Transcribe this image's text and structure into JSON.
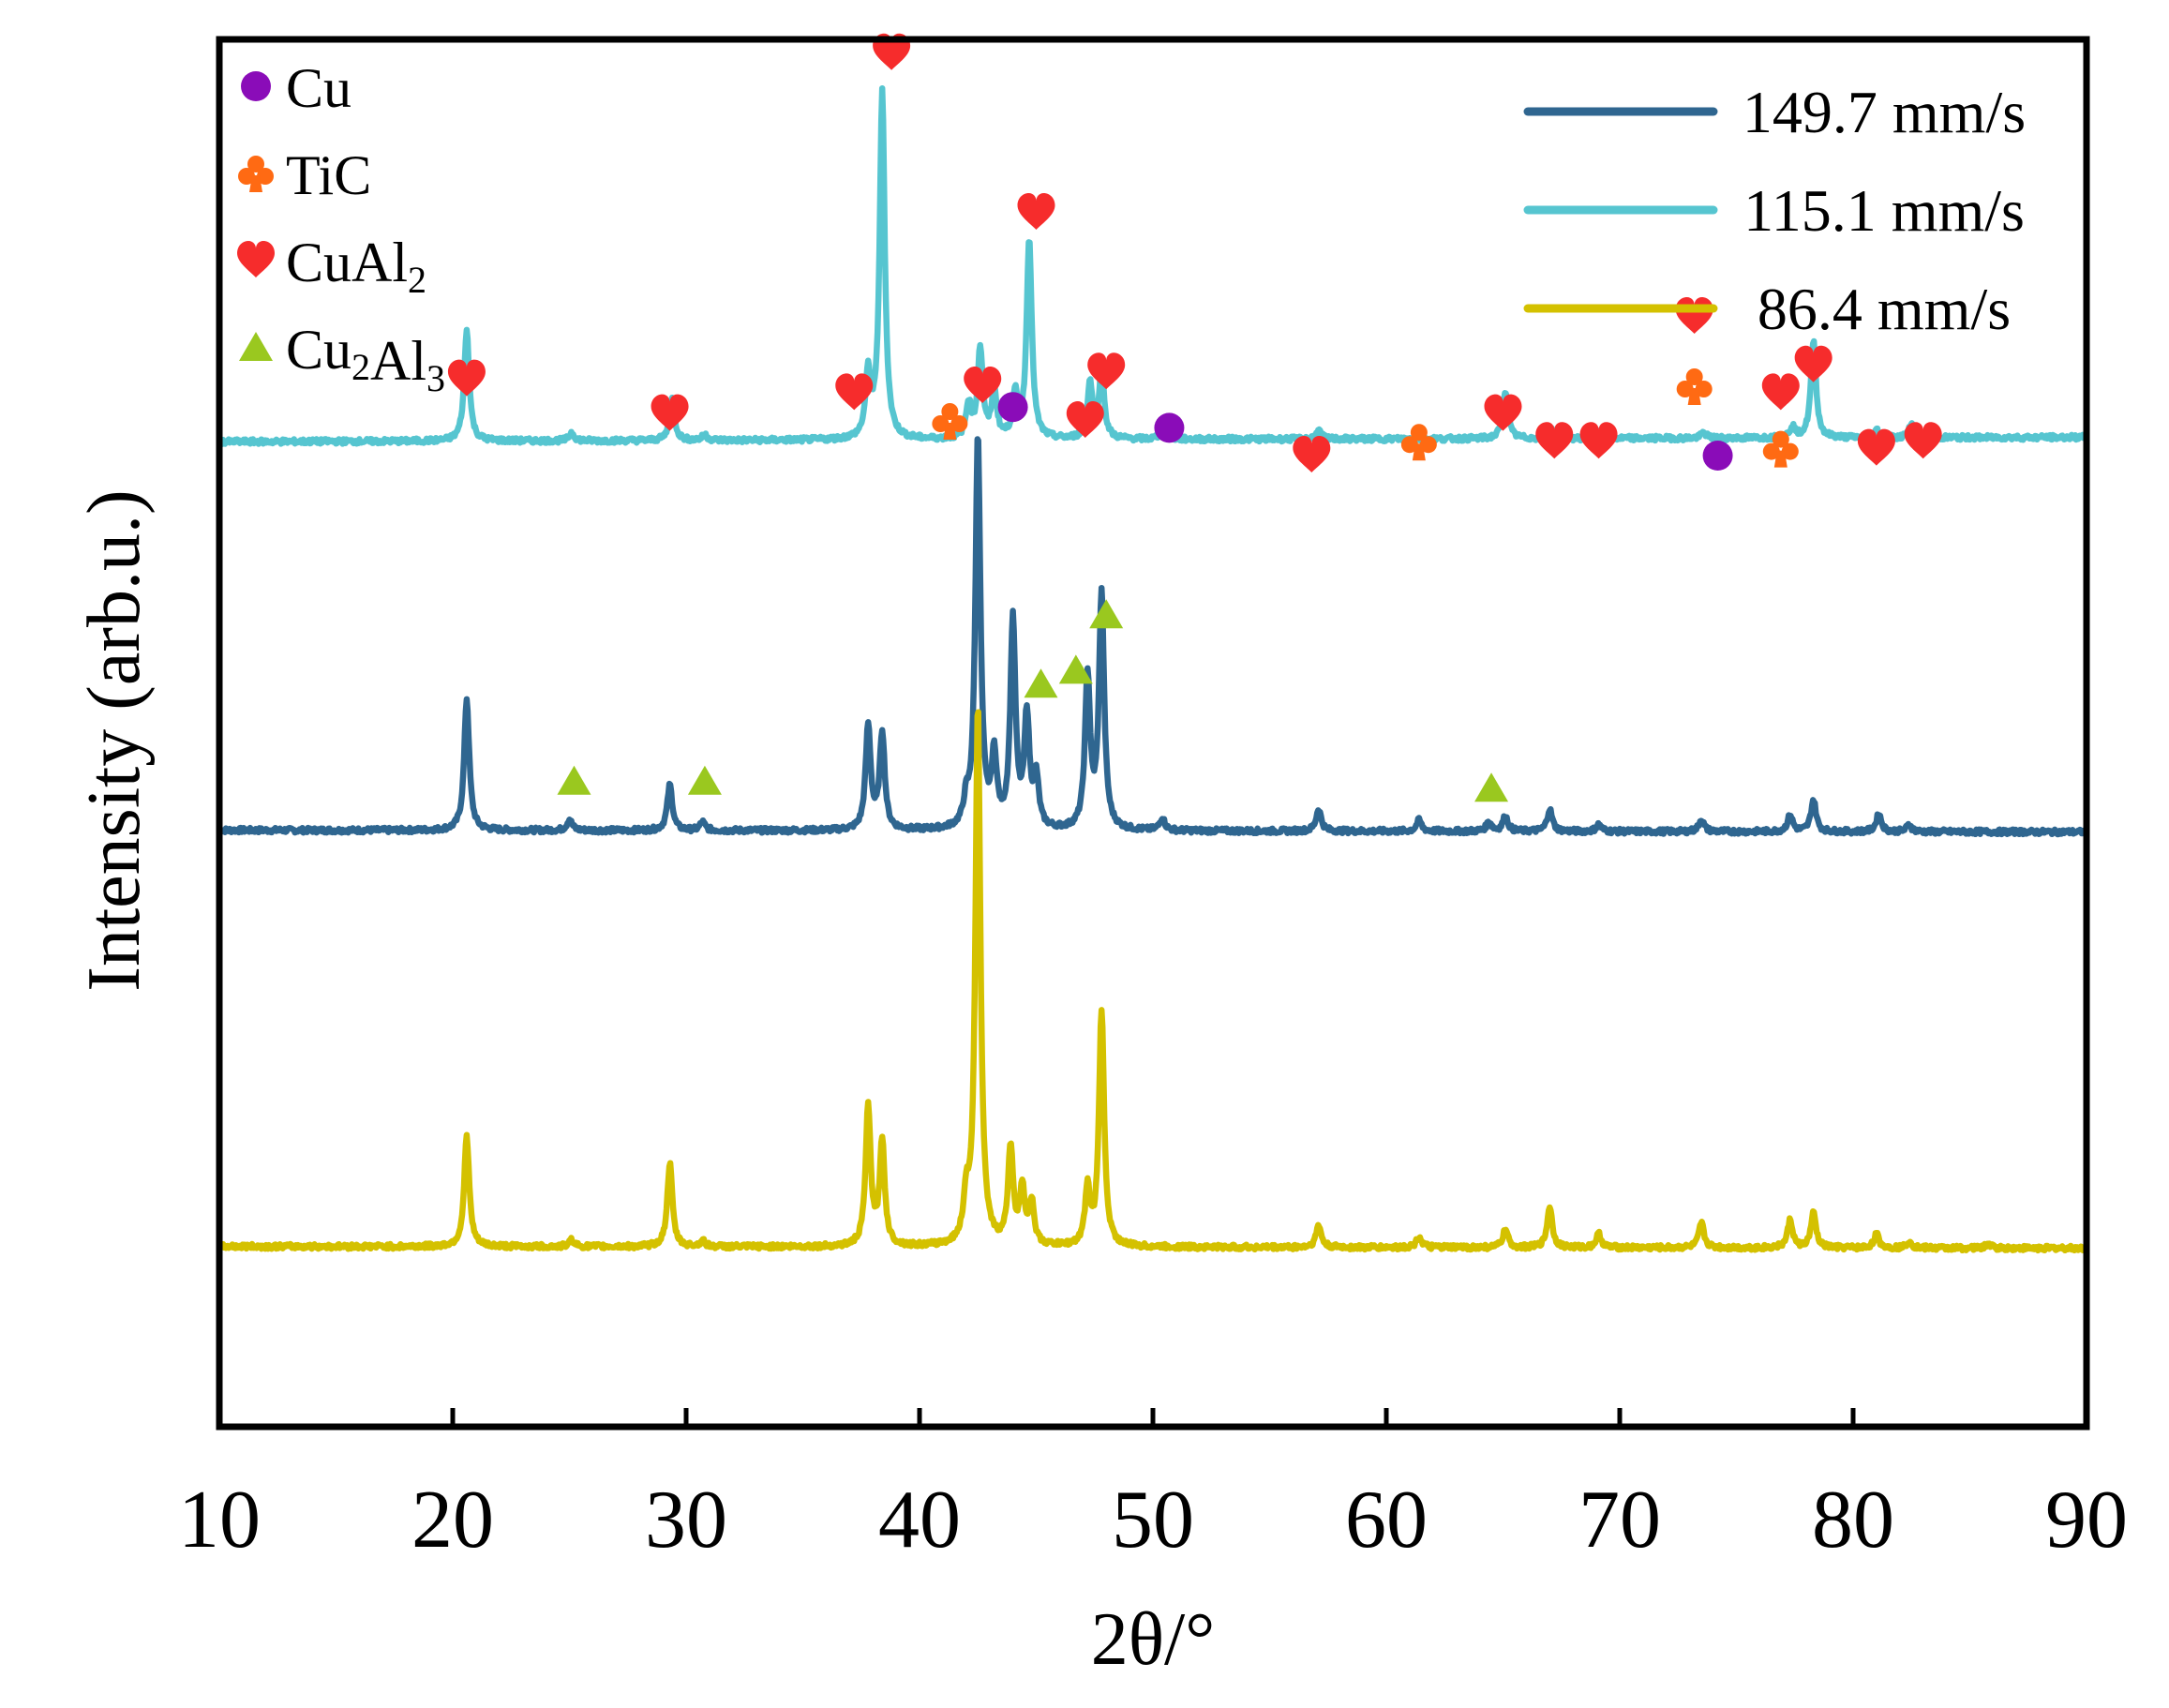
{
  "chart_data": {
    "type": "line",
    "title": "",
    "xlabel": "2θ/°",
    "ylabel": "Intensity (arb.u.)",
    "xlim": [
      10,
      90
    ],
    "xticks": [
      10,
      20,
      30,
      40,
      50,
      60,
      70,
      80,
      90
    ],
    "ylim": [
      0,
      100
    ],
    "grid": false,
    "legend_position": "top-right",
    "series": [
      {
        "name": "149.7 mm/s",
        "color": "#2f6690",
        "baseline": 43,
        "peaks": [
          [
            20.6,
            9.5
          ],
          [
            25.0,
            0.8
          ],
          [
            29.3,
            3.3
          ],
          [
            30.7,
            0.6
          ],
          [
            37.8,
            7.5
          ],
          [
            38.4,
            7.0
          ],
          [
            42.0,
            1.6
          ],
          [
            42.5,
            28.5
          ],
          [
            43.2,
            5.0
          ],
          [
            44.0,
            15.0
          ],
          [
            44.6,
            8.0
          ],
          [
            45.0,
            3.5
          ],
          [
            47.2,
            11.0
          ],
          [
            47.8,
            17.0
          ],
          [
            50.4,
            0.9
          ],
          [
            57.1,
            1.6
          ],
          [
            61.4,
            0.8
          ],
          [
            64.4,
            0.7
          ],
          [
            65.1,
            1.1
          ],
          [
            67.0,
            1.6
          ],
          [
            69.1,
            0.5
          ],
          [
            73.5,
            0.9
          ],
          [
            77.3,
            1.2
          ],
          [
            78.3,
            2.3
          ],
          [
            81.1,
            1.3
          ],
          [
            82.4,
            0.5
          ]
        ]
      },
      {
        "name": "115.1 mm/s",
        "color": "#56c5d0",
        "baseline": 71,
        "peaks": [
          [
            20.6,
            8.0
          ],
          [
            25.1,
            0.6
          ],
          [
            29.4,
            3.0
          ],
          [
            30.8,
            0.4
          ],
          [
            37.8,
            4.5
          ],
          [
            38.4,
            25.0
          ],
          [
            42.1,
            2.5
          ],
          [
            42.6,
            6.5
          ],
          [
            43.2,
            3.5
          ],
          [
            44.1,
            3.0
          ],
          [
            44.7,
            14.5
          ],
          [
            47.3,
            4.0
          ],
          [
            47.8,
            5.0
          ],
          [
            50.4,
            0.8
          ],
          [
            57.1,
            0.6
          ],
          [
            65.1,
            3.5
          ],
          [
            67.1,
            0.6
          ],
          [
            69.1,
            0.4
          ],
          [
            73.6,
            0.4
          ],
          [
            77.4,
            0.8
          ],
          [
            78.3,
            7.0
          ],
          [
            81.0,
            0.6
          ],
          [
            82.5,
            1.0
          ]
        ]
      },
      {
        "name": "86.4 mm/s",
        "color": "#d4c100",
        "baseline": 13,
        "peaks": [
          [
            20.6,
            8.0
          ],
          [
            25.1,
            0.5
          ],
          [
            29.3,
            6.0
          ],
          [
            30.7,
            0.4
          ],
          [
            37.8,
            10.0
          ],
          [
            38.4,
            7.5
          ],
          [
            42.0,
            3.0
          ],
          [
            42.5,
            39.0
          ],
          [
            43.9,
            7.0
          ],
          [
            44.4,
            4.0
          ],
          [
            44.8,
            3.0
          ],
          [
            47.2,
            4.0
          ],
          [
            47.8,
            17.0
          ],
          [
            57.1,
            1.6
          ],
          [
            61.4,
            0.8
          ],
          [
            65.1,
            1.3
          ],
          [
            67.0,
            3.0
          ],
          [
            69.1,
            1.0
          ],
          [
            73.5,
            1.8
          ],
          [
            77.3,
            2.0
          ],
          [
            78.3,
            2.5
          ],
          [
            81.0,
            1.0
          ],
          [
            82.4,
            0.5
          ],
          [
            85.8,
            0.3
          ]
        ]
      }
    ],
    "phase_legend": [
      {
        "phase": "Cu",
        "label": "Cu",
        "sub": "",
        "sym": "circle",
        "color": "#8a0cb8"
      },
      {
        "phase": "TiC",
        "label": "TiC",
        "sub": "",
        "sym": "club",
        "color": "#ff6a13"
      },
      {
        "phase": "CuAl2",
        "label": "CuAl",
        "sub": "2",
        "sym": "heart",
        "color": "#f62c2c"
      },
      {
        "phase": "Cu2Al3",
        "label": "Cu",
        "sub": "2",
        "label2": "Al",
        "sub2": "3",
        "sym": "triangle",
        "color": "#9ac81f"
      }
    ],
    "annotations": [
      {
        "sym": "heart",
        "x": 20.6,
        "y": 75.5
      },
      {
        "sym": "heart",
        "x": 29.3,
        "y": 73.0
      },
      {
        "sym": "heart",
        "x": 37.2,
        "y": 74.5
      },
      {
        "sym": "heart",
        "x": 38.8,
        "y": 99.0
      },
      {
        "sym": "heart",
        "x": 42.7,
        "y": 75.0
      },
      {
        "sym": "heart",
        "x": 45.0,
        "y": 87.5
      },
      {
        "sym": "heart",
        "x": 47.1,
        "y": 72.5
      },
      {
        "sym": "heart",
        "x": 48.0,
        "y": 76.0
      },
      {
        "sym": "heart",
        "x": 56.8,
        "y": 70.0
      },
      {
        "sym": "heart",
        "x": 65.0,
        "y": 73.0
      },
      {
        "sym": "heart",
        "x": 67.2,
        "y": 71.0
      },
      {
        "sym": "heart",
        "x": 69.1,
        "y": 71.0
      },
      {
        "sym": "heart",
        "x": 73.2,
        "y": 80.0
      },
      {
        "sym": "heart",
        "x": 76.9,
        "y": 74.5
      },
      {
        "sym": "heart",
        "x": 78.3,
        "y": 76.5
      },
      {
        "sym": "heart",
        "x": 81.0,
        "y": 70.5
      },
      {
        "sym": "heart",
        "x": 83.0,
        "y": 71.0
      },
      {
        "sym": "club",
        "x": 41.3,
        "y": 72.5
      },
      {
        "sym": "club",
        "x": 61.4,
        "y": 71.0
      },
      {
        "sym": "club",
        "x": 73.2,
        "y": 75.0
      },
      {
        "sym": "club",
        "x": 76.9,
        "y": 70.5
      },
      {
        "sym": "circle",
        "x": 44.0,
        "y": 73.5
      },
      {
        "sym": "circle",
        "x": 50.7,
        "y": 72.0
      },
      {
        "sym": "circle",
        "x": 74.2,
        "y": 70.0
      },
      {
        "sym": "triangle",
        "x": 25.2,
        "y": 46.5
      },
      {
        "sym": "triangle",
        "x": 30.8,
        "y": 46.5
      },
      {
        "sym": "triangle",
        "x": 45.2,
        "y": 53.5
      },
      {
        "sym": "triangle",
        "x": 46.7,
        "y": 54.5
      },
      {
        "sym": "triangle",
        "x": 48.0,
        "y": 58.5
      },
      {
        "sym": "triangle",
        "x": 64.5,
        "y": 46.0
      }
    ]
  }
}
